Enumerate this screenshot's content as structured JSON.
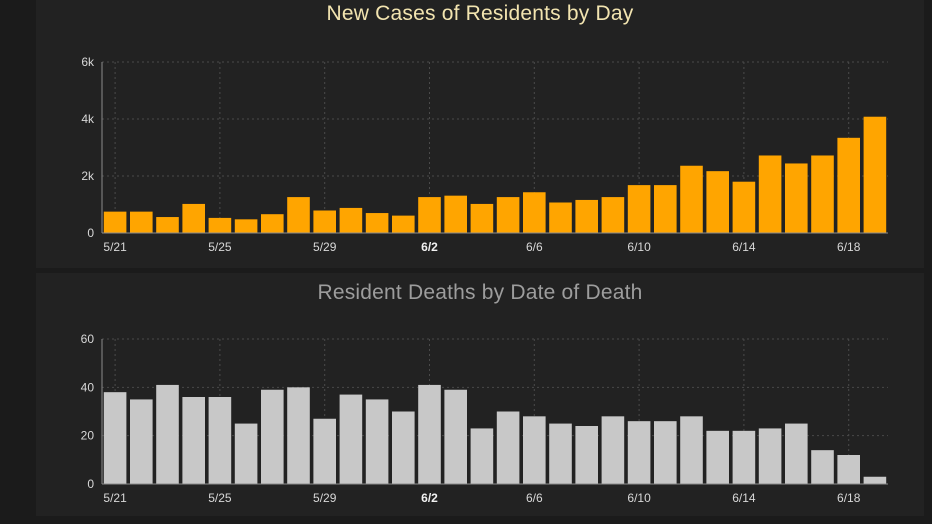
{
  "colors": {
    "background": "#1b1b1b",
    "panel": "#222222",
    "cases_bar": "#ffa500",
    "deaths_bar": "#c8c8c8",
    "grid": "#4a4a4a",
    "axis": "#8c8c8c"
  },
  "chart_data": [
    {
      "type": "bar",
      "title": "New Cases of Residents by Day",
      "xlabel": "",
      "ylabel": "",
      "categories": [
        "5/21",
        "5/22",
        "5/23",
        "5/24",
        "5/25",
        "5/26",
        "5/27",
        "5/28",
        "5/29",
        "5/30",
        "5/31",
        "6/1",
        "6/2",
        "6/3",
        "6/4",
        "6/5",
        "6/6",
        "6/7",
        "6/8",
        "6/9",
        "6/10",
        "6/11",
        "6/12",
        "6/13",
        "6/14",
        "6/15",
        "6/16",
        "6/17",
        "6/18",
        "6/19"
      ],
      "values": [
        750,
        750,
        560,
        1020,
        530,
        480,
        660,
        1260,
        790,
        880,
        700,
        610,
        1260,
        1310,
        1020,
        1260,
        1430,
        1070,
        1160,
        1260,
        1680,
        1680,
        2360,
        2170,
        1800,
        2720,
        2440,
        2720,
        3340,
        4080
      ],
      "ylim": [
        0,
        6000
      ],
      "yticks": [
        "0",
        "2k",
        "4k",
        "6k"
      ],
      "ytick_values": [
        0,
        2000,
        4000,
        6000
      ],
      "xtick_labels": [
        "5/21",
        "5/25",
        "5/29",
        "6/2",
        "6/6",
        "6/10",
        "6/14",
        "6/18"
      ],
      "xtick_indices": [
        0,
        4,
        8,
        12,
        16,
        20,
        24,
        28
      ],
      "bold_tick": "6/2",
      "grid": true
    },
    {
      "type": "bar",
      "title": "Resident Deaths by Date of Death",
      "xlabel": "",
      "ylabel": "",
      "categories": [
        "5/21",
        "5/22",
        "5/23",
        "5/24",
        "5/25",
        "5/26",
        "5/27",
        "5/28",
        "5/29",
        "5/30",
        "5/31",
        "6/1",
        "6/2",
        "6/3",
        "6/4",
        "6/5",
        "6/6",
        "6/7",
        "6/8",
        "6/9",
        "6/10",
        "6/11",
        "6/12",
        "6/13",
        "6/14",
        "6/15",
        "6/16",
        "6/17",
        "6/18",
        "6/19"
      ],
      "values": [
        38,
        35,
        41,
        36,
        36,
        25,
        39,
        40,
        27,
        37,
        35,
        30,
        41,
        39,
        23,
        30,
        28,
        25,
        24,
        28,
        26,
        26,
        28,
        22,
        22,
        23,
        25,
        14,
        12,
        3
      ],
      "ylim": [
        0,
        60
      ],
      "yticks": [
        "0",
        "20",
        "40",
        "60"
      ],
      "ytick_values": [
        0,
        20,
        40,
        60
      ],
      "xtick_labels": [
        "5/21",
        "5/25",
        "5/29",
        "6/2",
        "6/6",
        "6/10",
        "6/14",
        "6/18"
      ],
      "xtick_indices": [
        0,
        4,
        8,
        12,
        16,
        20,
        24,
        28
      ],
      "bold_tick": "6/2",
      "grid": true
    }
  ]
}
